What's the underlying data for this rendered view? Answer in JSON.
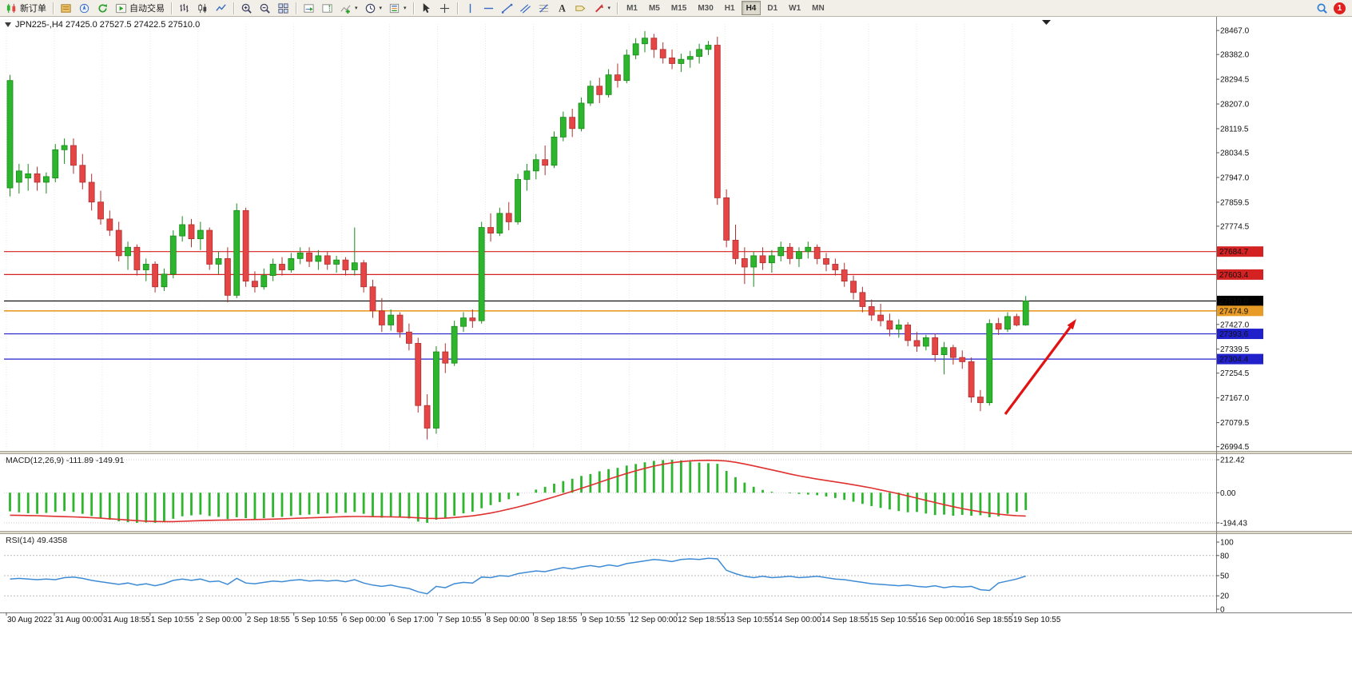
{
  "toolbar": {
    "new_order_label": "新订单",
    "autotrading_label": "自动交易",
    "timeframes": [
      "M1",
      "M5",
      "M15",
      "M30",
      "H1",
      "H4",
      "D1",
      "W1",
      "MN"
    ],
    "active_timeframe": "H4",
    "notification_count": "1"
  },
  "chart": {
    "title": "JPN225-,H4 27425.0 27527.5 27422.5 27510.0",
    "symbol": "JPN225-",
    "period": "H4",
    "open": "27425.0",
    "high": "27527.5",
    "low": "27422.5",
    "close": "27510.0",
    "price_axis_labels": [
      "28467.0",
      "28382.0",
      "28294.5",
      "28207.0",
      "28119.5",
      "28034.5",
      "27947.0",
      "27859.5",
      "27774.5",
      "27427.0",
      "27339.5",
      "27254.5",
      "27167.0",
      "27079.5",
      "26994.5"
    ],
    "line_tags": [
      {
        "label": "27684.7",
        "price": 27684.7,
        "color": "#d42121"
      },
      {
        "label": "27603.4",
        "price": 27603.4,
        "color": "#d42121"
      },
      {
        "label": "27510.0",
        "price": 27510.0,
        "color": "#000000"
      },
      {
        "label": "27474.9",
        "price": 27474.9,
        "color": "#e89b27"
      },
      {
        "label": "27393.6",
        "price": 27393.6,
        "color": "#2121cc"
      },
      {
        "label": "27304.4",
        "price": 27304.4,
        "color": "#2121cc"
      }
    ],
    "time_labels": [
      "30 Aug 2022",
      "31 Aug 00:00",
      "31 Aug 18:55",
      "1 Sep 10:55",
      "2 Sep 00:00",
      "2 Sep 18:55",
      "5 Sep 10:55",
      "6 Sep 00:00",
      "6 Sep 17:00",
      "7 Sep 10:55",
      "8 Sep 00:00",
      "8 Sep 18:55",
      "9 Sep 10:55",
      "12 Sep 00:00",
      "12 Sep 18:55",
      "13 Sep 10:55",
      "14 Sep 00:00",
      "14 Sep 18:55",
      "15 Sep 10:55",
      "16 Sep 00:00",
      "16 Sep 18:55",
      "19 Sep 10:55"
    ],
    "annotation": {
      "type": "arrow",
      "color": "#e31212",
      "direction": "up-right"
    }
  },
  "chart_data": {
    "type": "candlestick",
    "symbol": "JPN225-",
    "timeframe": "H4",
    "ohlc_current": {
      "open": 27425.0,
      "high": 27527.5,
      "low": 27422.5,
      "close": 27510.0
    },
    "price_range": {
      "min": 26994.5,
      "max": 28467.0
    },
    "up_color": "#2db52d",
    "down_color": "#e54545",
    "candles": [
      [
        27910,
        28310,
        27880,
        28290
      ],
      [
        27930,
        27995,
        27890,
        27970
      ],
      [
        27945,
        27995,
        27900,
        27960
      ],
      [
        27960,
        27985,
        27900,
        27930
      ],
      [
        27930,
        27965,
        27890,
        27950
      ],
      [
        27945,
        28065,
        27930,
        28045
      ],
      [
        28045,
        28085,
        27995,
        28060
      ],
      [
        28060,
        28085,
        27960,
        27990
      ],
      [
        27990,
        28030,
        27905,
        27930
      ],
      [
        27930,
        27960,
        27830,
        27860
      ],
      [
        27860,
        27900,
        27780,
        27800
      ],
      [
        27800,
        27830,
        27740,
        27760
      ],
      [
        27760,
        27790,
        27650,
        27670
      ],
      [
        27670,
        27720,
        27620,
        27700
      ],
      [
        27700,
        27710,
        27600,
        27620
      ],
      [
        27620,
        27660,
        27580,
        27640
      ],
      [
        27640,
        27650,
        27540,
        27560
      ],
      [
        27560,
        27625,
        27545,
        27605
      ],
      [
        27605,
        27760,
        27590,
        27740
      ],
      [
        27740,
        27810,
        27720,
        27780
      ],
      [
        27780,
        27800,
        27700,
        27730
      ],
      [
        27730,
        27790,
        27690,
        27760
      ],
      [
        27760,
        27770,
        27620,
        27640
      ],
      [
        27640,
        27685,
        27605,
        27660
      ],
      [
        27660,
        27700,
        27505,
        27530
      ],
      [
        27530,
        27855,
        27520,
        27830
      ],
      [
        27830,
        27840,
        27560,
        27580
      ],
      [
        27580,
        27615,
        27540,
        27560
      ],
      [
        27560,
        27625,
        27550,
        27600
      ],
      [
        27600,
        27660,
        27580,
        27640
      ],
      [
        27640,
        27665,
        27600,
        27620
      ],
      [
        27620,
        27680,
        27610,
        27660
      ],
      [
        27660,
        27700,
        27640,
        27680
      ],
      [
        27680,
        27700,
        27630,
        27650
      ],
      [
        27650,
        27690,
        27620,
        27670
      ],
      [
        27670,
        27685,
        27620,
        27640
      ],
      [
        27640,
        27670,
        27610,
        27655
      ],
      [
        27655,
        27665,
        27600,
        27620
      ],
      [
        27620,
        27770,
        27600,
        27645
      ],
      [
        27645,
        27655,
        27540,
        27560
      ],
      [
        27560,
        27585,
        27450,
        27475
      ],
      [
        27475,
        27520,
        27400,
        27425
      ],
      [
        27425,
        27480,
        27405,
        27460
      ],
      [
        27460,
        27470,
        27380,
        27400
      ],
      [
        27400,
        27430,
        27335,
        27360
      ],
      [
        27360,
        27380,
        27115,
        27140
      ],
      [
        27140,
        27180,
        27020,
        27060
      ],
      [
        27060,
        27350,
        27040,
        27330
      ],
      [
        27330,
        27360,
        27255,
        27290
      ],
      [
        27290,
        27440,
        27280,
        27420
      ],
      [
        27420,
        27470,
        27400,
        27450
      ],
      [
        27450,
        27480,
        27415,
        27440
      ],
      [
        27440,
        27790,
        27430,
        27770
      ],
      [
        27770,
        27820,
        27720,
        27750
      ],
      [
        27750,
        27840,
        27740,
        27820
      ],
      [
        27820,
        27860,
        27760,
        27790
      ],
      [
        27790,
        27960,
        27780,
        27940
      ],
      [
        27940,
        27995,
        27900,
        27970
      ],
      [
        27970,
        28030,
        27940,
        28010
      ],
      [
        28010,
        28060,
        27955,
        27990
      ],
      [
        27990,
        28110,
        27980,
        28090
      ],
      [
        28090,
        28180,
        28075,
        28160
      ],
      [
        28160,
        28190,
        28090,
        28120
      ],
      [
        28120,
        28230,
        28110,
        28210
      ],
      [
        28210,
        28290,
        28200,
        28270
      ],
      [
        28270,
        28300,
        28210,
        28240
      ],
      [
        28240,
        28330,
        28230,
        28310
      ],
      [
        28310,
        28350,
        28265,
        28290
      ],
      [
        28290,
        28400,
        28280,
        28380
      ],
      [
        28380,
        28440,
        28365,
        28420
      ],
      [
        28420,
        28465,
        28390,
        28440
      ],
      [
        28440,
        28455,
        28370,
        28400
      ],
      [
        28400,
        28425,
        28350,
        28370
      ],
      [
        28370,
        28400,
        28330,
        28350
      ],
      [
        28350,
        28385,
        28320,
        28365
      ],
      [
        28365,
        28395,
        28335,
        28375
      ],
      [
        28375,
        28420,
        28350,
        28400
      ],
      [
        28400,
        28430,
        28380,
        28415
      ],
      [
        28415,
        28445,
        27850,
        27875
      ],
      [
        27875,
        27905,
        27700,
        27725
      ],
      [
        27725,
        27780,
        27640,
        27660
      ],
      [
        27660,
        27700,
        27570,
        27630
      ],
      [
        27630,
        27685,
        27560,
        27670
      ],
      [
        27670,
        27700,
        27620,
        27645
      ],
      [
        27645,
        27690,
        27610,
        27670
      ],
      [
        27670,
        27720,
        27650,
        27700
      ],
      [
        27700,
        27715,
        27640,
        27660
      ],
      [
        27660,
        27700,
        27630,
        27685
      ],
      [
        27685,
        27720,
        27660,
        27700
      ],
      [
        27700,
        27710,
        27640,
        27660
      ],
      [
        27660,
        27680,
        27615,
        27640
      ],
      [
        27640,
        27660,
        27600,
        27620
      ],
      [
        27620,
        27645,
        27560,
        27580
      ],
      [
        27580,
        27600,
        27515,
        27540
      ],
      [
        27540,
        27560,
        27470,
        27490
      ],
      [
        27490,
        27515,
        27440,
        27460
      ],
      [
        27460,
        27500,
        27420,
        27440
      ],
      [
        27440,
        27465,
        27385,
        27410
      ],
      [
        27410,
        27445,
        27380,
        27425
      ],
      [
        27425,
        27435,
        27350,
        27370
      ],
      [
        27370,
        27400,
        27330,
        27350
      ],
      [
        27350,
        27390,
        27335,
        27380
      ],
      [
        27380,
        27395,
        27295,
        27320
      ],
      [
        27320,
        27365,
        27250,
        27345
      ],
      [
        27345,
        27355,
        27285,
        27310
      ],
      [
        27310,
        27335,
        27270,
        27295
      ],
      [
        27295,
        27310,
        27150,
        27170
      ],
      [
        27170,
        27195,
        27120,
        27150
      ],
      [
        27150,
        27445,
        27140,
        27430
      ],
      [
        27430,
        27450,
        27390,
        27410
      ],
      [
        27410,
        27470,
        27400,
        27455
      ],
      [
        27455,
        27465,
        27420,
        27425
      ],
      [
        27425,
        27527.5,
        27422.5,
        27510.0
      ]
    ],
    "macd": {
      "label": "MACD(12,26,9) -111.89 -149.91",
      "params": "12,26,9",
      "value": -111.89,
      "signal_value": -149.91,
      "scale_labels": [
        "212.42",
        "0.00",
        "-194.43"
      ],
      "histogram_color": "#2db52d",
      "signal_color": "#e03030",
      "histogram": [
        -120,
        -126,
        -132,
        -136,
        -130,
        -124,
        -118,
        -124,
        -136,
        -150,
        -163,
        -174,
        -184,
        -190,
        -194,
        -192,
        -194,
        -186,
        -168,
        -152,
        -146,
        -141,
        -150,
        -156,
        -170,
        -158,
        -164,
        -170,
        -164,
        -158,
        -156,
        -150,
        -144,
        -141,
        -137,
        -134,
        -131,
        -129,
        -124,
        -136,
        -150,
        -161,
        -155,
        -159,
        -166,
        -186,
        -194,
        -174,
        -163,
        -148,
        -133,
        -122,
        -100,
        -80,
        -60,
        -42,
        -20,
        0,
        20,
        38,
        58,
        75,
        90,
        108,
        120,
        138,
        152,
        160,
        175,
        185,
        196,
        205,
        210,
        212,
        208,
        200,
        194,
        190,
        186,
        140,
        100,
        65,
        38,
        18,
        6,
        0,
        -4,
        -8,
        -12,
        -16,
        -24,
        -34,
        -46,
        -58,
        -72,
        -86,
        -98,
        -108,
        -118,
        -126,
        -124,
        -134,
        -144,
        -141,
        -148,
        -143,
        -148,
        -145,
        -158,
        -152,
        -136,
        -122,
        -111.89
      ],
      "signal": [
        -145,
        -146,
        -147,
        -148,
        -150,
        -152,
        -154,
        -156,
        -158,
        -161,
        -164,
        -168,
        -172,
        -176,
        -180,
        -183,
        -185,
        -186,
        -186,
        -184,
        -182,
        -180,
        -178,
        -177,
        -176,
        -175,
        -174,
        -173,
        -172,
        -170,
        -168,
        -166,
        -164,
        -162,
        -160,
        -158,
        -156,
        -154,
        -153,
        -153,
        -154,
        -155,
        -156,
        -157,
        -159,
        -162,
        -165,
        -166,
        -164,
        -160,
        -155,
        -149,
        -141,
        -131,
        -119,
        -106,
        -92,
        -77,
        -61,
        -44,
        -27,
        -9,
        9,
        28,
        47,
        67,
        87,
        106,
        124,
        141,
        157,
        171,
        183,
        193,
        200,
        205,
        208,
        209,
        208,
        204,
        196,
        185,
        173,
        160,
        147,
        134,
        121,
        109,
        98,
        88,
        79,
        70,
        61,
        51,
        41,
        30,
        18,
        6,
        -7,
        -21,
        -35,
        -49,
        -63,
        -77,
        -90,
        -102,
        -113,
        -123,
        -131,
        -138,
        -144,
        -148,
        -149.91
      ]
    },
    "rsi": {
      "label": "RSI(14) 49.4358",
      "period": 14,
      "value": 49.4358,
      "scale_labels": [
        "100",
        "80",
        "50",
        "20",
        "0"
      ],
      "levels": [
        80,
        50,
        20
      ],
      "line_color": "#3d8bd4",
      "values": [
        45,
        46,
        45,
        44,
        45,
        44,
        47,
        48,
        46,
        43,
        41,
        39,
        37,
        39,
        36,
        38,
        35,
        38,
        43,
        45,
        43,
        45,
        41,
        42,
        37,
        46,
        39,
        38,
        40,
        42,
        41,
        43,
        44,
        42,
        43,
        42,
        43,
        41,
        44,
        39,
        36,
        34,
        36,
        33,
        31,
        26,
        23,
        34,
        32,
        38,
        40,
        39,
        48,
        47,
        50,
        49,
        53,
        55,
        57,
        56,
        59,
        62,
        60,
        63,
        65,
        63,
        66,
        64,
        68,
        70,
        72,
        74,
        73,
        71,
        74,
        75,
        74,
        76,
        75,
        58,
        53,
        49,
        47,
        49,
        47,
        48,
        49,
        47,
        48,
        49,
        47,
        45,
        44,
        42,
        40,
        38,
        37,
        36,
        35,
        36,
        34,
        33,
        35,
        32,
        34,
        33,
        34,
        29,
        28,
        39,
        42,
        45,
        49.44
      ]
    }
  }
}
